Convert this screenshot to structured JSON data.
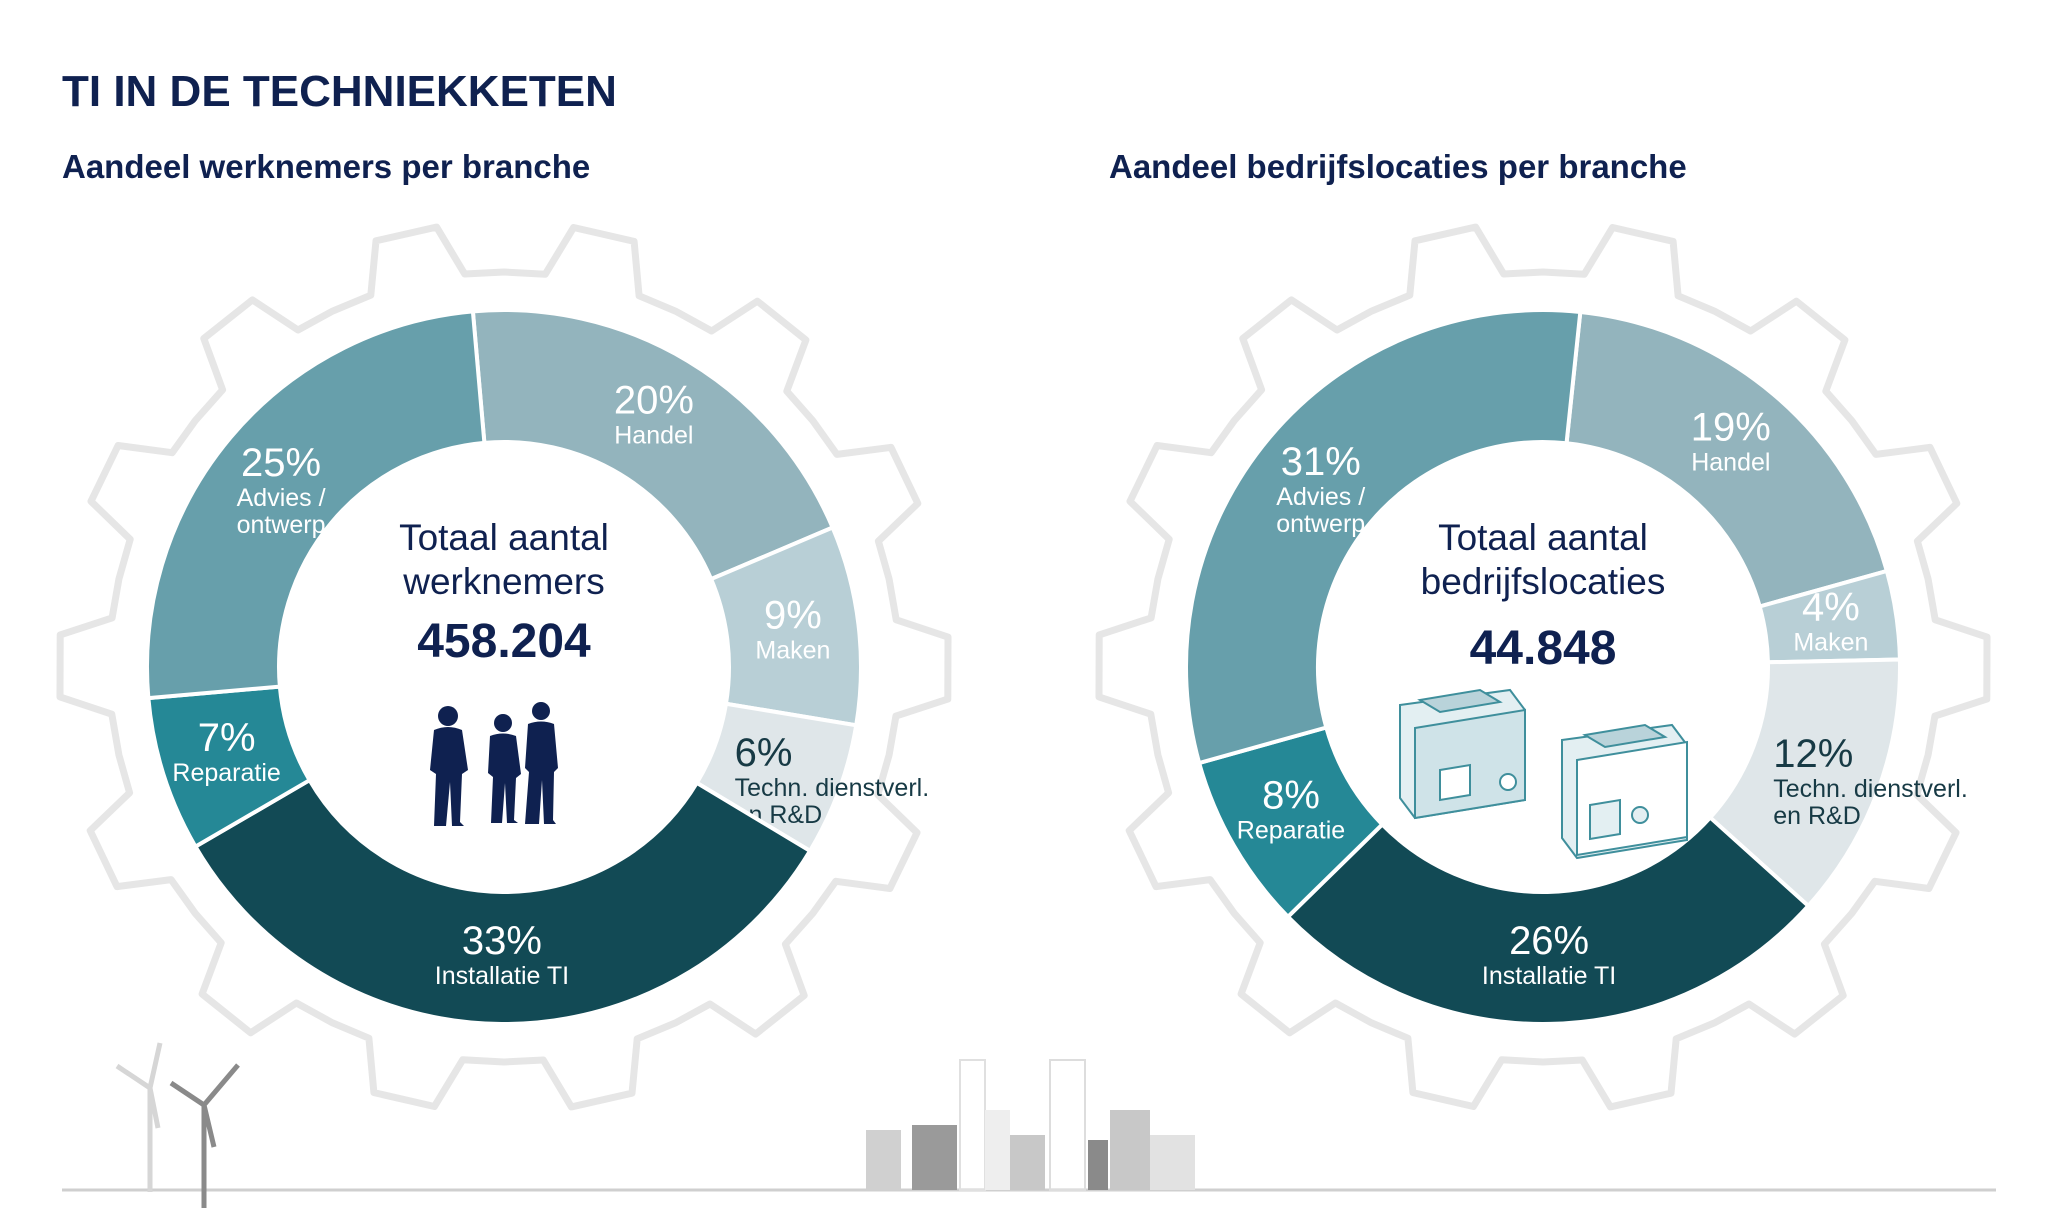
{
  "title": "TI IN DE TECHNIEKKETEN",
  "colors": {
    "Handel": "#93b4bd",
    "Maken": "#b8cfd6",
    "Techn": "#dfe6e9",
    "Installatie": "#124a55",
    "Reparatie": "#258896",
    "Advies": "#679fab",
    "text_dark": "#0f2150"
  },
  "chart_data": [
    {
      "type": "pie",
      "donut": true,
      "title": "Aandeel werknemers per branche",
      "center_label": [
        "Totaal aantal",
        "werknemers"
      ],
      "center_value": "458.204",
      "center_icon": "people-silhouettes-icon",
      "start_angle_deg": -5,
      "slices": [
        {
          "key": "Handel",
          "label": [
            "Handel"
          ],
          "value": 20,
          "pct": "20%"
        },
        {
          "key": "Maken",
          "label": [
            "Maken"
          ],
          "value": 9,
          "pct": "9%"
        },
        {
          "key": "Techn",
          "label": [
            "Techn. dienstverl.",
            "en R&D"
          ],
          "value": 6,
          "pct": "6%"
        },
        {
          "key": "Installatie",
          "label": [
            "Installatie TI"
          ],
          "value": 33,
          "pct": "33%"
        },
        {
          "key": "Reparatie",
          "label": [
            "Reparatie"
          ],
          "value": 7,
          "pct": "7%"
        },
        {
          "key": "Advies",
          "label": [
            "Advies /",
            "ontwerp"
          ],
          "value": 25,
          "pct": "25%"
        }
      ]
    },
    {
      "type": "pie",
      "donut": true,
      "title": "Aandeel bedrijfslocaties per branche",
      "center_label": [
        "Totaal aantal",
        "bedrijfslocaties"
      ],
      "center_value": "44.848",
      "center_icon": "buildings-icon",
      "start_angle_deg": 6,
      "slices": [
        {
          "key": "Handel",
          "label": [
            "Handel"
          ],
          "value": 19,
          "pct": "19%"
        },
        {
          "key": "Maken",
          "label": [
            "Maken"
          ],
          "value": 4,
          "pct": "4%"
        },
        {
          "key": "Techn",
          "label": [
            "Techn. dienstverl.",
            "en R&D"
          ],
          "value": 12,
          "pct": "12%"
        },
        {
          "key": "Installatie",
          "label": [
            "Installatie TI"
          ],
          "value": 26,
          "pct": "26%"
        },
        {
          "key": "Reparatie",
          "label": [
            "Reparatie"
          ],
          "value": 8,
          "pct": "8%"
        },
        {
          "key": "Advies",
          "label": [
            "Advies /",
            "ontwerp"
          ],
          "value": 31,
          "pct": "31%"
        }
      ]
    }
  ]
}
